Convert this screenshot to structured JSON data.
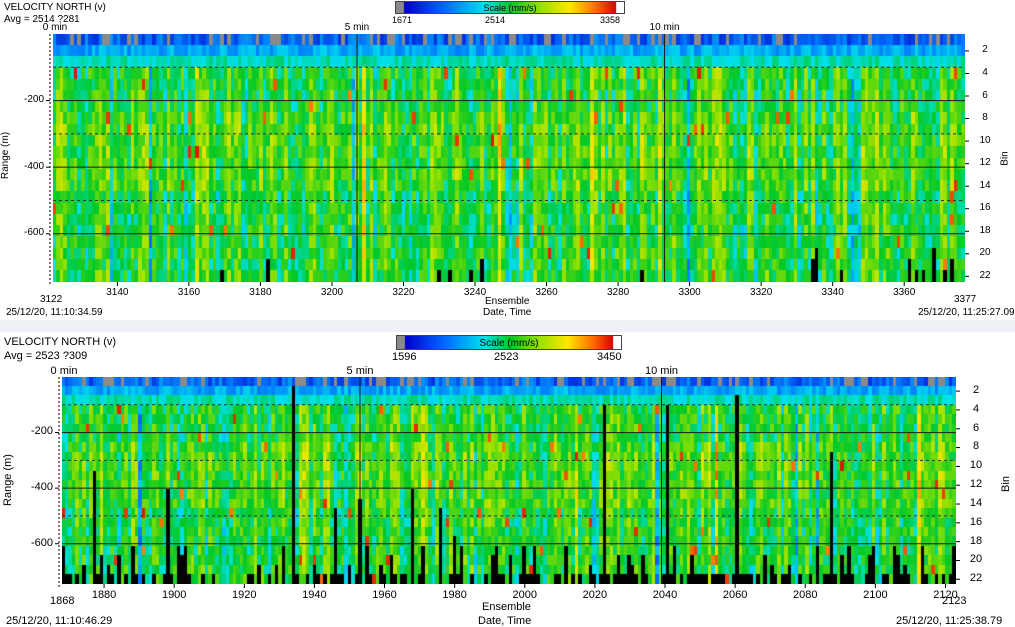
{
  "chart_data": [
    {
      "type": "heatmap",
      "title": "VELOCITY NORTH (v)",
      "subtitle": "Avg = 2514 ?281",
      "scale": {
        "label": "Scale (mm/s)",
        "min": 1671,
        "mid": 2514,
        "max": 3358,
        "min_label": "1671",
        "mid_label": "2514",
        "max_label": "3358"
      },
      "x": {
        "label": "Ensemble",
        "range": [
          3122,
          3377
        ],
        "ticks": [
          3140,
          3160,
          3180,
          3200,
          3220,
          3240,
          3260,
          3280,
          3300,
          3320,
          3340,
          3360
        ],
        "start_label": "3122",
        "end_label": "3377"
      },
      "x2": {
        "label": "Date, Time",
        "start": "25/12/20, 11:10:34.59",
        "end": "25/12/20, 11:25:27.09"
      },
      "time_ticks": [
        {
          "label": "0 min",
          "ensemble": 3122
        },
        {
          "label": "5 min",
          "ensemble": 3207
        },
        {
          "label": "10 min",
          "ensemble": 3293
        }
      ],
      "y": {
        "label": "Range (m)",
        "range": [
          0,
          -745
        ],
        "ticks": [
          -200,
          -400,
          -600
        ],
        "tick_labels": [
          "-200",
          "-400",
          "-600"
        ]
      },
      "y2": {
        "label": "Bin",
        "range": [
          1,
          22
        ],
        "ticks": [
          2,
          4,
          6,
          8,
          10,
          12,
          14,
          16,
          18,
          20,
          22
        ]
      }
    },
    {
      "type": "heatmap",
      "title": "VELOCITY NORTH (v)",
      "subtitle": "Avg = 2523 ?309",
      "scale": {
        "label": "Scale (mm/s)",
        "min": 1596,
        "mid": 2523,
        "max": 3450,
        "min_label": "1596",
        "mid_label": "2523",
        "max_label": "3450"
      },
      "x": {
        "label": "Ensemble",
        "range": [
          1868,
          2123
        ],
        "ticks": [
          1880,
          1900,
          1920,
          1940,
          1960,
          1980,
          2000,
          2020,
          2040,
          2060,
          2080,
          2100,
          2120
        ],
        "start_label": "1868",
        "end_label": "2123"
      },
      "x2": {
        "label": "Date, Time",
        "start": "25/12/20, 11:10:46.29",
        "end": "25/12/20, 11:25:38.79"
      },
      "time_ticks": [
        {
          "label": "0 min",
          "ensemble": 1868
        },
        {
          "label": "5 min",
          "ensemble": 1953
        },
        {
          "label": "10 min",
          "ensemble": 2039
        }
      ],
      "y": {
        "label": "Range (m)",
        "range": [
          0,
          -745
        ],
        "ticks": [
          -200,
          -400,
          -600
        ],
        "tick_labels": [
          "-200",
          "-400",
          "-600"
        ]
      },
      "y2": {
        "label": "Bin",
        "range": [
          1,
          22
        ],
        "ticks": [
          2,
          4,
          6,
          8,
          10,
          12,
          14,
          16,
          18,
          20,
          22
        ]
      }
    }
  ]
}
